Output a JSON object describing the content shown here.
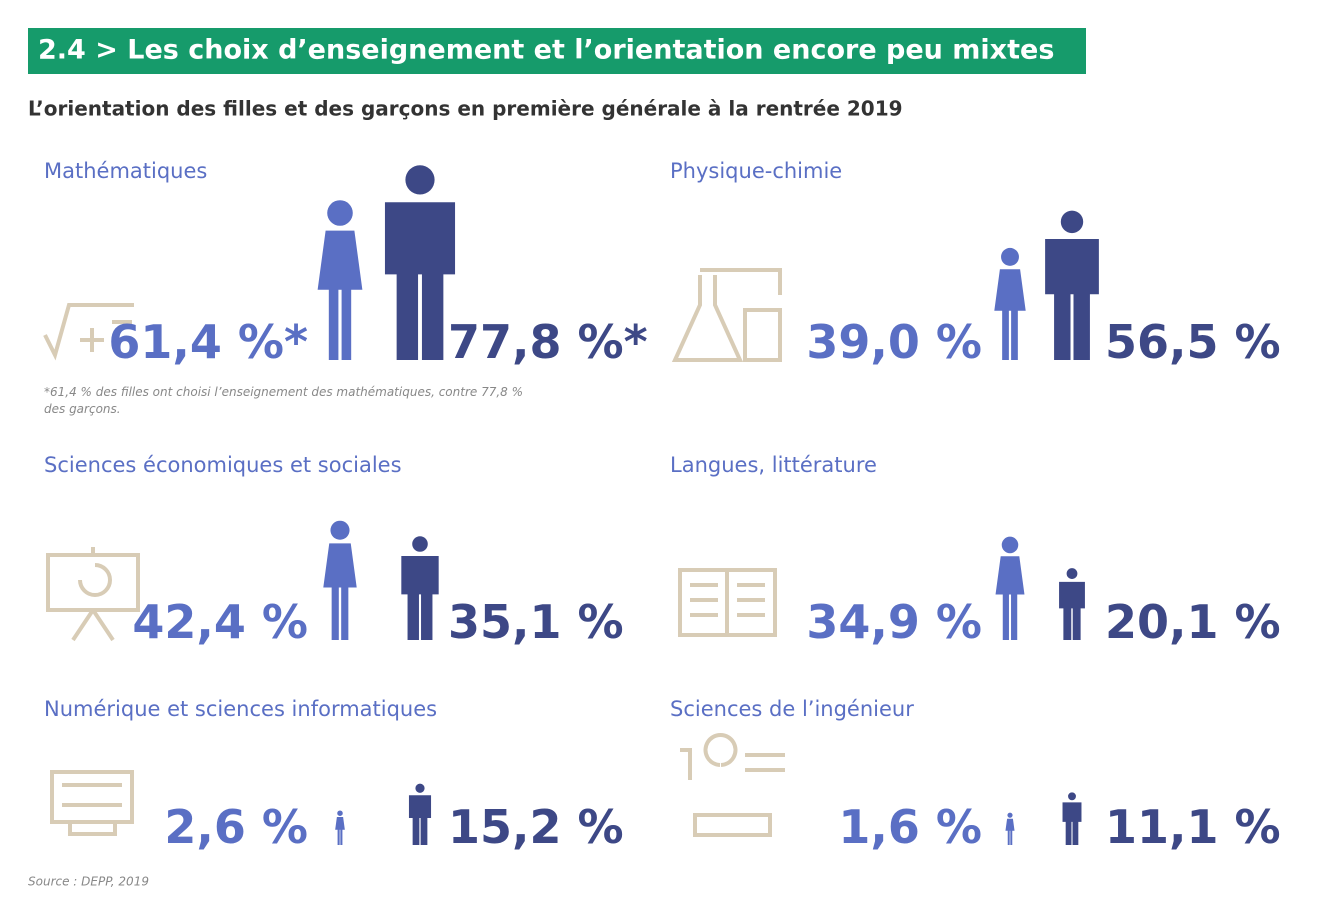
{
  "chart_data": {
    "type": "pictogram",
    "title": "2.4 > Les choix d’enseignement et l’orientation encore peu mixtes",
    "subtitle": "L’orientation des filles et des garçons en première générale à la rentrée 2019",
    "note": "*61,4 % des filles ont choisi l’enseignement des mathématiques, contre 77,8 % des garçons.",
    "source": "Source : DEPP, 2019",
    "categories": [
      "Mathématiques",
      "Physique-chimie",
      "Sciences économiques et sociales",
      "Langues, littérature",
      "Numérique et sciences informatiques",
      "Sciences de l’ingénieur"
    ],
    "series": [
      {
        "color": "#5a6fc4",
        "values": [
          61.4,
          39.0,
          42.4,
          34.9,
          2.6,
          1.6
        ],
        "value_labels": [
          "61,4 %*",
          "39,0 %",
          "42,4 %",
          "34,9 %",
          "2,6 %",
          "1,6 %"
        ]
      },
      {
        "color": "#3d4886",
        "values": [
          77.8,
          56.5,
          35.1,
          20.1,
          15.2,
          11.1
        ],
        "value_labels": [
          "77,8 %*",
          "56,5 %",
          "35,1 %",
          "20,1 %",
          "15,2 %",
          "11,1 %"
        ]
      }
    ]
  }
}
